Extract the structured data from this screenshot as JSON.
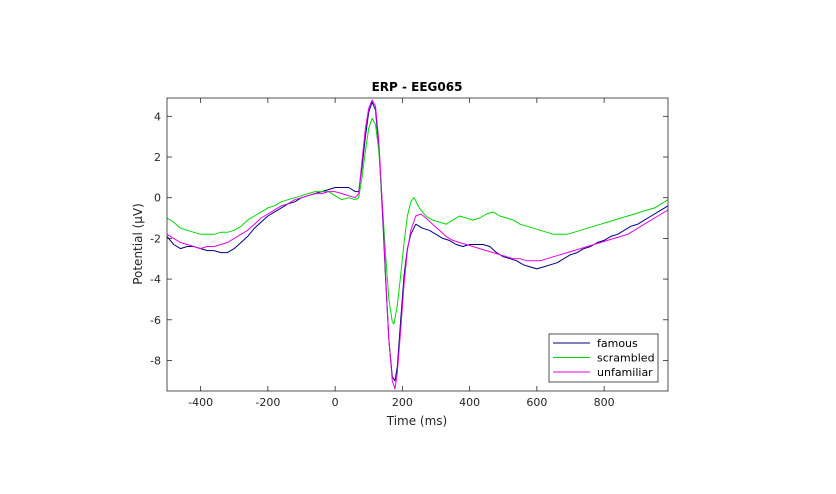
{
  "chart_data": {
    "type": "line",
    "title": "ERP - EEG065",
    "xlabel": "Time (ms)",
    "ylabel": "Potential (μV)",
    "xlim": [
      -500,
      990
    ],
    "ylim": [
      -9.5,
      4.9
    ],
    "xticks": [
      -400,
      -200,
      0,
      200,
      400,
      600,
      800
    ],
    "yticks": [
      4,
      2,
      0,
      -2,
      -4,
      -6,
      -8
    ],
    "xtick_labels": [
      "-400",
      "-200",
      "0",
      "200",
      "400",
      "600",
      "800"
    ],
    "ytick_labels": [
      "4",
      "2",
      "0",
      "-2",
      "-4",
      "-6",
      "-8"
    ],
    "grid": false,
    "legend_position": "bottom-right",
    "series": [
      {
        "name": "famous",
        "color": "#00007f",
        "points": [
          [
            -500,
            -1.9
          ],
          [
            -480,
            -2.3
          ],
          [
            -460,
            -2.5
          ],
          [
            -440,
            -2.4
          ],
          [
            -420,
            -2.4
          ],
          [
            -400,
            -2.5
          ],
          [
            -380,
            -2.6
          ],
          [
            -360,
            -2.6
          ],
          [
            -340,
            -2.7
          ],
          [
            -320,
            -2.7
          ],
          [
            -300,
            -2.5
          ],
          [
            -280,
            -2.2
          ],
          [
            -260,
            -1.9
          ],
          [
            -240,
            -1.5
          ],
          [
            -220,
            -1.2
          ],
          [
            -200,
            -0.9
          ],
          [
            -180,
            -0.7
          ],
          [
            -160,
            -0.5
          ],
          [
            -140,
            -0.3
          ],
          [
            -120,
            -0.2
          ],
          [
            -100,
            0.0
          ],
          [
            -80,
            0.1
          ],
          [
            -60,
            0.2
          ],
          [
            -40,
            0.3
          ],
          [
            -20,
            0.4
          ],
          [
            0,
            0.5
          ],
          [
            20,
            0.5
          ],
          [
            40,
            0.5
          ],
          [
            60,
            0.3
          ],
          [
            70,
            0.3
          ],
          [
            80,
            1.5
          ],
          [
            90,
            3.0
          ],
          [
            100,
            4.2
          ],
          [
            110,
            4.7
          ],
          [
            120,
            4.3
          ],
          [
            130,
            2.5
          ],
          [
            140,
            -0.5
          ],
          [
            150,
            -4.0
          ],
          [
            160,
            -7.0
          ],
          [
            170,
            -8.8
          ],
          [
            178,
            -9.0
          ],
          [
            185,
            -8.3
          ],
          [
            195,
            -6.0
          ],
          [
            205,
            -3.8
          ],
          [
            215,
            -2.5
          ],
          [
            225,
            -1.8
          ],
          [
            240,
            -1.3
          ],
          [
            260,
            -1.5
          ],
          [
            280,
            -1.6
          ],
          [
            300,
            -1.8
          ],
          [
            320,
            -2.0
          ],
          [
            340,
            -2.1
          ],
          [
            360,
            -2.3
          ],
          [
            380,
            -2.4
          ],
          [
            400,
            -2.3
          ],
          [
            420,
            -2.3
          ],
          [
            440,
            -2.3
          ],
          [
            460,
            -2.4
          ],
          [
            480,
            -2.7
          ],
          [
            500,
            -2.9
          ],
          [
            520,
            -3.0
          ],
          [
            540,
            -3.1
          ],
          [
            560,
            -3.3
          ],
          [
            580,
            -3.4
          ],
          [
            600,
            -3.5
          ],
          [
            620,
            -3.4
          ],
          [
            640,
            -3.3
          ],
          [
            660,
            -3.2
          ],
          [
            680,
            -3.0
          ],
          [
            700,
            -2.8
          ],
          [
            720,
            -2.7
          ],
          [
            740,
            -2.5
          ],
          [
            760,
            -2.4
          ],
          [
            780,
            -2.2
          ],
          [
            800,
            -2.1
          ],
          [
            820,
            -1.9
          ],
          [
            840,
            -1.8
          ],
          [
            860,
            -1.6
          ],
          [
            880,
            -1.4
          ],
          [
            900,
            -1.3
          ],
          [
            920,
            -1.1
          ],
          [
            940,
            -0.9
          ],
          [
            960,
            -0.7
          ],
          [
            980,
            -0.5
          ],
          [
            990,
            -0.4
          ]
        ]
      },
      {
        "name": "scrambled",
        "color": "#00d900",
        "points": [
          [
            -500,
            -1.0
          ],
          [
            -480,
            -1.2
          ],
          [
            -460,
            -1.5
          ],
          [
            -440,
            -1.6
          ],
          [
            -420,
            -1.7
          ],
          [
            -400,
            -1.8
          ],
          [
            -380,
            -1.8
          ],
          [
            -360,
            -1.8
          ],
          [
            -340,
            -1.7
          ],
          [
            -320,
            -1.7
          ],
          [
            -300,
            -1.6
          ],
          [
            -280,
            -1.4
          ],
          [
            -260,
            -1.1
          ],
          [
            -240,
            -0.9
          ],
          [
            -220,
            -0.7
          ],
          [
            -200,
            -0.5
          ],
          [
            -180,
            -0.4
          ],
          [
            -160,
            -0.2
          ],
          [
            -140,
            -0.1
          ],
          [
            -120,
            0.0
          ],
          [
            -100,
            0.1
          ],
          [
            -80,
            0.2
          ],
          [
            -60,
            0.3
          ],
          [
            -40,
            0.3
          ],
          [
            -20,
            0.3
          ],
          [
            0,
            0.1
          ],
          [
            20,
            -0.1
          ],
          [
            40,
            0.0
          ],
          [
            60,
            -0.1
          ],
          [
            70,
            0.0
          ],
          [
            80,
            1.0
          ],
          [
            90,
            2.3
          ],
          [
            100,
            3.4
          ],
          [
            110,
            3.9
          ],
          [
            120,
            3.6
          ],
          [
            130,
            2.3
          ],
          [
            140,
            -0.2
          ],
          [
            150,
            -2.8
          ],
          [
            160,
            -5.0
          ],
          [
            170,
            -6.1
          ],
          [
            175,
            -6.2
          ],
          [
            185,
            -5.3
          ],
          [
            195,
            -3.8
          ],
          [
            205,
            -2.2
          ],
          [
            215,
            -0.9
          ],
          [
            225,
            -0.2
          ],
          [
            235,
            0.0
          ],
          [
            250,
            -0.5
          ],
          [
            270,
            -0.9
          ],
          [
            290,
            -1.1
          ],
          [
            310,
            -1.2
          ],
          [
            330,
            -1.3
          ],
          [
            350,
            -1.1
          ],
          [
            370,
            -0.9
          ],
          [
            390,
            -1.0
          ],
          [
            410,
            -1.1
          ],
          [
            430,
            -1.0
          ],
          [
            450,
            -0.8
          ],
          [
            470,
            -0.7
          ],
          [
            490,
            -0.9
          ],
          [
            510,
            -1.0
          ],
          [
            530,
            -1.1
          ],
          [
            550,
            -1.3
          ],
          [
            570,
            -1.4
          ],
          [
            590,
            -1.5
          ],
          [
            610,
            -1.6
          ],
          [
            630,
            -1.7
          ],
          [
            650,
            -1.8
          ],
          [
            670,
            -1.8
          ],
          [
            690,
            -1.8
          ],
          [
            710,
            -1.7
          ],
          [
            730,
            -1.6
          ],
          [
            750,
            -1.5
          ],
          [
            770,
            -1.4
          ],
          [
            790,
            -1.3
          ],
          [
            810,
            -1.2
          ],
          [
            830,
            -1.1
          ],
          [
            850,
            -1.0
          ],
          [
            870,
            -0.9
          ],
          [
            890,
            -0.8
          ],
          [
            910,
            -0.7
          ],
          [
            930,
            -0.6
          ],
          [
            950,
            -0.5
          ],
          [
            970,
            -0.3
          ],
          [
            990,
            -0.1
          ]
        ]
      },
      {
        "name": "unfamiliar",
        "color": "#e600e6",
        "points": [
          [
            -500,
            -1.8
          ],
          [
            -480,
            -2.0
          ],
          [
            -460,
            -2.2
          ],
          [
            -440,
            -2.3
          ],
          [
            -420,
            -2.4
          ],
          [
            -400,
            -2.5
          ],
          [
            -380,
            -2.4
          ],
          [
            -360,
            -2.4
          ],
          [
            -340,
            -2.3
          ],
          [
            -320,
            -2.2
          ],
          [
            -300,
            -2.0
          ],
          [
            -280,
            -1.8
          ],
          [
            -260,
            -1.6
          ],
          [
            -240,
            -1.3
          ],
          [
            -220,
            -1.0
          ],
          [
            -200,
            -0.8
          ],
          [
            -180,
            -0.6
          ],
          [
            -160,
            -0.4
          ],
          [
            -140,
            -0.3
          ],
          [
            -120,
            -0.1
          ],
          [
            -100,
            0.0
          ],
          [
            -80,
            0.1
          ],
          [
            -60,
            0.2
          ],
          [
            -40,
            0.2
          ],
          [
            -20,
            0.3
          ],
          [
            0,
            0.3
          ],
          [
            20,
            0.2
          ],
          [
            40,
            0.1
          ],
          [
            60,
            0.0
          ],
          [
            70,
            0.2
          ],
          [
            80,
            1.8
          ],
          [
            90,
            3.4
          ],
          [
            100,
            4.4
          ],
          [
            110,
            4.8
          ],
          [
            120,
            4.5
          ],
          [
            130,
            2.8
          ],
          [
            140,
            -0.2
          ],
          [
            150,
            -3.8
          ],
          [
            160,
            -7.0
          ],
          [
            170,
            -9.0
          ],
          [
            178,
            -9.4
          ],
          [
            185,
            -8.6
          ],
          [
            195,
            -6.5
          ],
          [
            205,
            -4.2
          ],
          [
            215,
            -2.6
          ],
          [
            225,
            -1.6
          ],
          [
            240,
            -0.9
          ],
          [
            255,
            -0.8
          ],
          [
            270,
            -1.0
          ],
          [
            290,
            -1.3
          ],
          [
            310,
            -1.6
          ],
          [
            330,
            -1.9
          ],
          [
            350,
            -2.1
          ],
          [
            370,
            -2.2
          ],
          [
            390,
            -2.3
          ],
          [
            410,
            -2.4
          ],
          [
            430,
            -2.5
          ],
          [
            450,
            -2.6
          ],
          [
            470,
            -2.7
          ],
          [
            490,
            -2.8
          ],
          [
            510,
            -2.9
          ],
          [
            530,
            -3.0
          ],
          [
            550,
            -3.0
          ],
          [
            570,
            -3.1
          ],
          [
            590,
            -3.1
          ],
          [
            610,
            -3.1
          ],
          [
            630,
            -3.0
          ],
          [
            650,
            -2.9
          ],
          [
            670,
            -2.8
          ],
          [
            690,
            -2.7
          ],
          [
            710,
            -2.6
          ],
          [
            730,
            -2.5
          ],
          [
            750,
            -2.4
          ],
          [
            770,
            -2.3
          ],
          [
            790,
            -2.2
          ],
          [
            810,
            -2.1
          ],
          [
            830,
            -2.0
          ],
          [
            850,
            -1.9
          ],
          [
            870,
            -1.8
          ],
          [
            890,
            -1.6
          ],
          [
            910,
            -1.4
          ],
          [
            930,
            -1.2
          ],
          [
            950,
            -1.0
          ],
          [
            970,
            -0.8
          ],
          [
            990,
            -0.6
          ]
        ]
      }
    ]
  }
}
